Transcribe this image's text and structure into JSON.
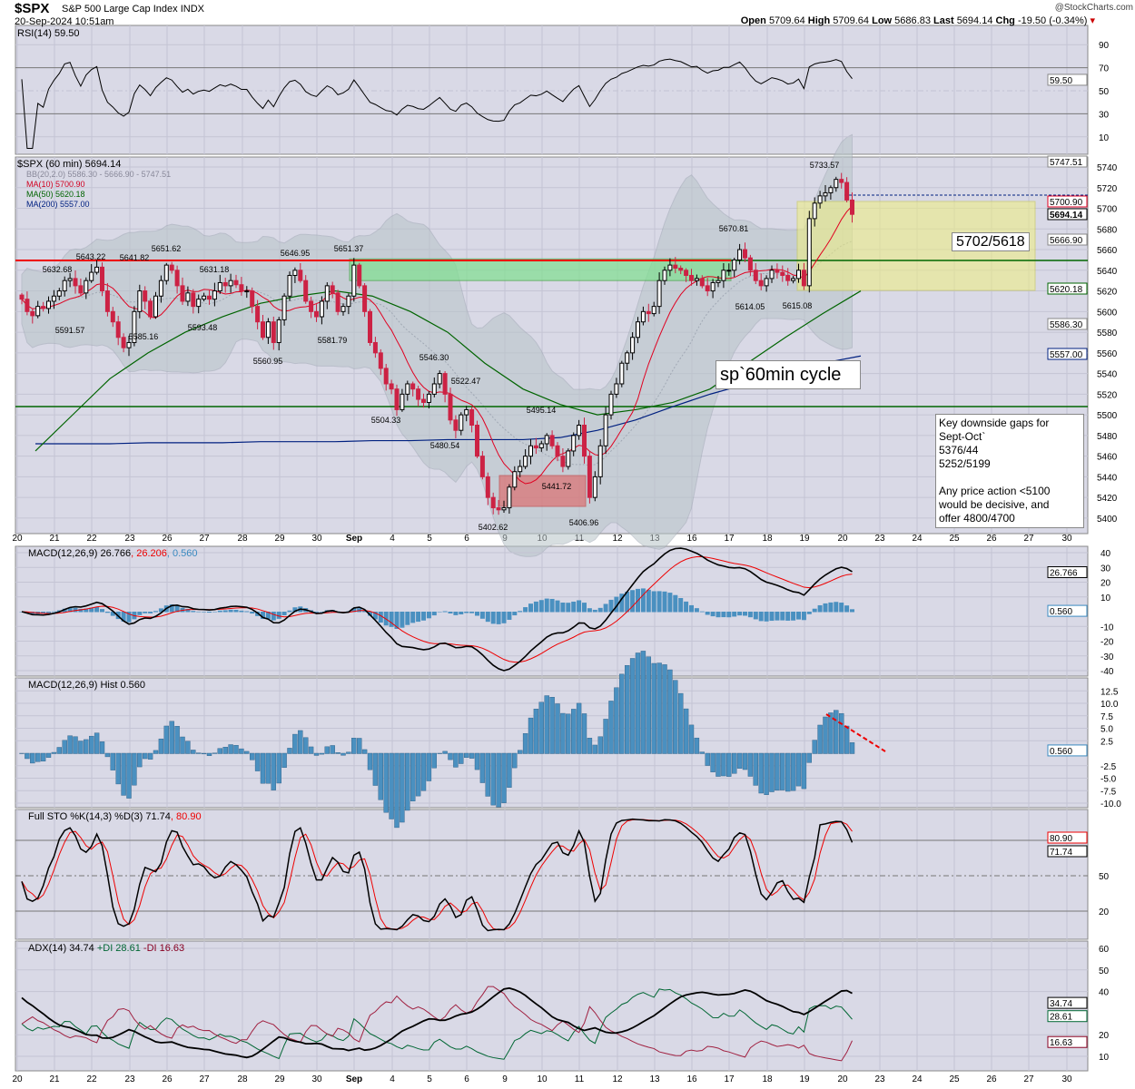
{
  "header": {
    "symbol": "$SPX",
    "name": "S&P 500 Large Cap Index",
    "exchange": "INDX",
    "datetime": "20-Sep-2024 10:51am",
    "brand": "@StockCharts.com",
    "quote": {
      "open_label": "Open",
      "open": "5709.64",
      "high_label": "High",
      "high": "5709.64",
      "low_label": "Low",
      "low": "5686.83",
      "last_label": "Last",
      "last": "5694.14",
      "chg_label": "Chg",
      "chg": "-19.50 (-0.34%)"
    }
  },
  "colors": {
    "up": "#000000",
    "down": "#cc2244",
    "ma10": "#e00020",
    "ma50": "#006400",
    "ma200": "#002080",
    "bb": "#a0a8b4",
    "panel_bg": "#d9d9e6",
    "hist": "#4a90c0"
  },
  "chart_data": [
    {
      "type": "candlestick",
      "title": "$SPX (60 min) 5694.14",
      "timeframe": "60 min",
      "ylim": [
        5390,
        5755
      ],
      "yticks": [
        5400,
        5420,
        5440,
        5460,
        5480,
        5500,
        5520,
        5540,
        5560,
        5580,
        5600,
        5620,
        5640,
        5660,
        5680,
        5700,
        5720,
        5740
      ],
      "xticks": [
        "20",
        "21",
        "22",
        "23",
        "26",
        "27",
        "28",
        "29",
        "30",
        "Sep",
        "4",
        "5",
        "6",
        "9",
        "10",
        "11",
        "12",
        "13",
        "16",
        "17",
        "18",
        "19",
        "20",
        "23",
        "24",
        "25",
        "26",
        "27",
        "30"
      ],
      "closes": [
        5612,
        5600,
        5596,
        5605,
        5603,
        5610,
        5615,
        5620,
        5630,
        5632,
        5625,
        5618,
        5630,
        5638,
        5643,
        5620,
        5600,
        5590,
        5575,
        5565,
        5570,
        5600,
        5620,
        5610,
        5595,
        5615,
        5630,
        5645,
        5640,
        5625,
        5610,
        5618,
        5605,
        5612,
        5615,
        5612,
        5620,
        5628,
        5625,
        5630,
        5626,
        5620,
        5620,
        5605,
        5590,
        5575,
        5590,
        5570,
        5592,
        5615,
        5635,
        5640,
        5630,
        5610,
        5600,
        5595,
        5610,
        5625,
        5618,
        5600,
        5605,
        5615,
        5645,
        5625,
        5600,
        5570,
        5560,
        5545,
        5530,
        5525,
        5505,
        5520,
        5530,
        5525,
        5515,
        5512,
        5520,
        5530,
        5540,
        5520,
        5495,
        5485,
        5500,
        5505,
        5490,
        5460,
        5440,
        5420,
        5410,
        5408,
        5410,
        5430,
        5445,
        5450,
        5460,
        5470,
        5468,
        5472,
        5480,
        5470,
        5460,
        5450,
        5465,
        5480,
        5490,
        5460,
        5420,
        5440,
        5470,
        5500,
        5520,
        5530,
        5550,
        5560,
        5575,
        5590,
        5600,
        5598,
        5605,
        5630,
        5640,
        5645,
        5642,
        5640,
        5635,
        5630,
        5632,
        5625,
        5620,
        5628,
        5630,
        5640,
        5640,
        5650,
        5660,
        5652,
        5640,
        5630,
        5625,
        5632,
        5640,
        5638,
        5635,
        5630,
        5632,
        5640,
        5625,
        5690,
        5705,
        5712,
        5715,
        5720,
        5728,
        5725,
        5708,
        5694.14
      ],
      "ma50_daily": [
        5465,
        5500,
        5535,
        5560,
        5580,
        5595,
        5608,
        5615,
        5620,
        5615,
        5600,
        5580,
        5550,
        5525,
        5510,
        5500,
        5505,
        5512,
        5525,
        5550,
        5575,
        5598,
        5620
      ],
      "ma200_daily": [
        5472,
        5472,
        5472,
        5473,
        5473,
        5473,
        5474,
        5474,
        5474,
        5475,
        5475,
        5476,
        5476,
        5476,
        5478,
        5485,
        5495,
        5508,
        5520,
        5530,
        5540,
        5550,
        5557
      ],
      "legend": {
        "bb": "BB(20,2.0) 5586.30 - 5666.90 - 5747.51",
        "ma10": "MA(10) 5700.90",
        "ma50": "MA(50) 5620.18",
        "ma200": "MA(200) 5557.00"
      },
      "axis_tags": [
        "5747.51",
        "5700.90",
        "5694.14",
        "5666.90",
        "5620.18",
        "5586.30",
        "5557.00"
      ],
      "price_labels": [
        "5643.22",
        "5632.68",
        "5641.82",
        "5651.62",
        "5631.18",
        "5646.95",
        "5651.37",
        "5591.57",
        "5585.16",
        "5593.48",
        "5560.95",
        "5581.79",
        "5546.30",
        "5522.47",
        "5504.33",
        "5480.54",
        "5495.14",
        "5441.72",
        "5402.62",
        "5406.96",
        "5670.81",
        "5614.05",
        "5615.08",
        "5733.57"
      ],
      "annotations": {
        "target": "5702/5618",
        "cycle": "sp`60min cycle",
        "gaps": [
          "Key downside gaps for",
          "Sept-Oct`",
          "5376/44",
          "5252/5199",
          "",
          "Any price action <5100",
          "would be decisive, and",
          "offer 4800/4700"
        ]
      }
    },
    {
      "type": "line",
      "title": "RSI(14) 59.50",
      "yticks": [
        90,
        70,
        50,
        30,
        10
      ],
      "last": "59.50"
    },
    {
      "type": "line",
      "title_parts": [
        "MACD(12,26,9) 26.766",
        ", 26.206",
        ", 0.560"
      ],
      "yticks": [
        40,
        30,
        20,
        10,
        -10,
        -20,
        -30,
        -40
      ],
      "tags": [
        "26.766",
        "0.560"
      ]
    },
    {
      "type": "bar",
      "title": "MACD(12,26,9) Hist 0.560",
      "yticks": [
        "12.5",
        "10.0",
        "7.5",
        "5.0",
        "2.5",
        "-2.5",
        "-5.0",
        "-7.5",
        "-10.0"
      ],
      "tag": "0.560"
    },
    {
      "type": "line",
      "title_parts": [
        "Full STO %K(14,3) %D(3) 71.74",
        ", 80.90"
      ],
      "yticks": [
        50,
        20
      ],
      "tags": [
        "80.90",
        "71.74"
      ]
    },
    {
      "type": "line",
      "title_parts": [
        "ADX(14) 34.74 ",
        "+DI 28.61 ",
        "-DI 16.63"
      ],
      "yticks": [
        60,
        50,
        40,
        20,
        10
      ],
      "tags": [
        "34.74",
        "28.61",
        "16.63"
      ]
    }
  ]
}
